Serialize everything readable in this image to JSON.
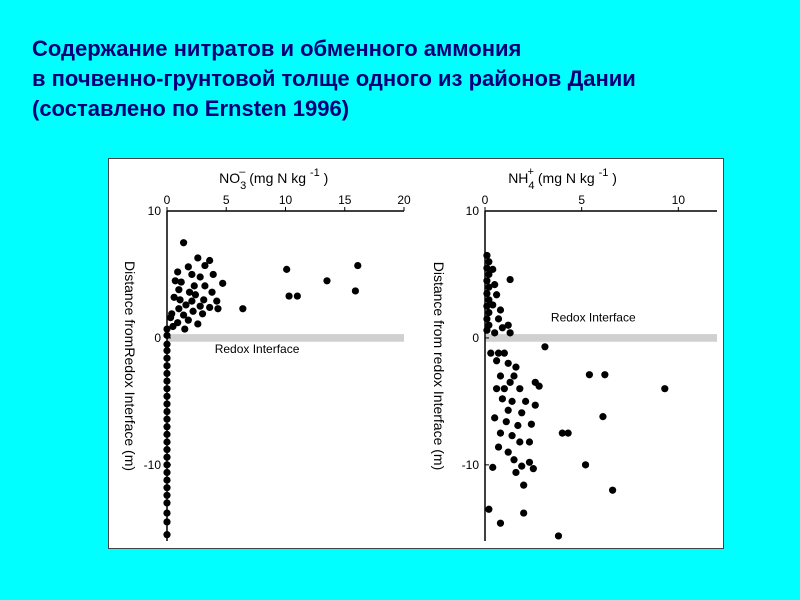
{
  "slide": {
    "title_lines": [
      "Содержание нитратов и обменного аммония",
      "в почвенно-грунтовой толще одного из районов Дании",
      "(составлено по Ernsten 1996)"
    ]
  },
  "colors": {
    "background": "#00ffff",
    "title": "#00007a",
    "marker": "#000000",
    "band": "#d0d0d0"
  },
  "chart_data": [
    {
      "type": "scatter",
      "title": "",
      "xlabel_main": "NO",
      "xlabel_sub": "3",
      "xlabel_sup": "–",
      "xlabel_units": "(mg N kg",
      "xlabel_units_sup": "-1",
      "xlabel_units_close": ")",
      "ylabel": "Distance fromRedox Interface (m)",
      "xlim": [
        0,
        20
      ],
      "ylim": [
        -16,
        10
      ],
      "xticks": [
        0,
        5,
        10,
        15,
        20
      ],
      "yticks": [
        10,
        0,
        -10
      ],
      "band_y": [
        -0.3,
        0.3
      ],
      "annotation": "Redox Interface",
      "annotation_pos": [
        7.6,
        -1.2
      ],
      "points": [
        [
          1.4,
          7.5
        ],
        [
          2.6,
          6.3
        ],
        [
          3.6,
          6.1
        ],
        [
          3.2,
          5.7
        ],
        [
          1.8,
          5.6
        ],
        [
          0.9,
          5.2
        ],
        [
          2.1,
          5.0
        ],
        [
          3.9,
          5.0
        ],
        [
          2.8,
          4.8
        ],
        [
          0.7,
          4.5
        ],
        [
          1.2,
          4.4
        ],
        [
          2.3,
          4.1
        ],
        [
          3.2,
          4.1
        ],
        [
          4.7,
          4.3
        ],
        [
          1.0,
          3.8
        ],
        [
          1.9,
          3.6
        ],
        [
          3.8,
          3.6
        ],
        [
          2.4,
          3.4
        ],
        [
          0.6,
          3.2
        ],
        [
          1.1,
          3.0
        ],
        [
          2.1,
          2.9
        ],
        [
          3.1,
          3.0
        ],
        [
          4.2,
          2.9
        ],
        [
          1.6,
          2.6
        ],
        [
          2.8,
          2.5
        ],
        [
          3.6,
          2.4
        ],
        [
          1.0,
          2.3
        ],
        [
          2.2,
          2.1
        ],
        [
          1.4,
          1.8
        ],
        [
          3.0,
          1.9
        ],
        [
          4.3,
          2.3
        ],
        [
          0.4,
          1.9
        ],
        [
          1.8,
          1.4
        ],
        [
          2.6,
          1.1
        ],
        [
          0.9,
          1.2
        ],
        [
          0.3,
          1.6
        ],
        [
          0.5,
          0.9
        ],
        [
          1.5,
          0.7
        ],
        [
          6.4,
          2.3
        ],
        [
          10.1,
          5.4
        ],
        [
          10.3,
          3.3
        ],
        [
          11.0,
          3.3
        ],
        [
          13.5,
          4.5
        ],
        [
          15.9,
          3.7
        ],
        [
          16.1,
          5.7
        ],
        [
          0.0,
          0.7
        ],
        [
          0.0,
          0.2
        ],
        [
          0.0,
          -0.5
        ],
        [
          0.0,
          -1.0
        ],
        [
          0.0,
          -1.6
        ],
        [
          0.0,
          -2.2
        ],
        [
          0.0,
          -2.8
        ],
        [
          0.0,
          -3.4
        ],
        [
          0.0,
          -4.0
        ],
        [
          0.0,
          -4.6
        ],
        [
          0.0,
          -5.2
        ],
        [
          0.0,
          -5.8
        ],
        [
          0.0,
          -6.4
        ],
        [
          0.0,
          -7.0
        ],
        [
          0.0,
          -7.6
        ],
        [
          0.0,
          -8.2
        ],
        [
          0.0,
          -8.8
        ],
        [
          0.0,
          -9.4
        ],
        [
          0.0,
          -10.0
        ],
        [
          0.0,
          -10.6
        ],
        [
          0.0,
          -11.2
        ],
        [
          0.0,
          -11.8
        ],
        [
          0.0,
          -12.4
        ],
        [
          0.0,
          -13.0
        ],
        [
          0.0,
          -13.8
        ],
        [
          0.0,
          -14.5
        ],
        [
          0.0,
          -15.5
        ]
      ]
    },
    {
      "type": "scatter",
      "title": "",
      "xlabel_main": "NH",
      "xlabel_sub": "4",
      "xlabel_sup": "+",
      "xlabel_units": "(mg N kg",
      "xlabel_units_sup": "-1",
      "xlabel_units_close": ")",
      "ylabel": "Distance from redox Interface (m)",
      "xlim": [
        0,
        12
      ],
      "ylim": [
        -16,
        10
      ],
      "xticks": [
        0,
        5,
        10
      ],
      "yticks": [
        10,
        0,
        -10
      ],
      "band_y": [
        -0.3,
        0.3
      ],
      "annotation": "Redox Interface",
      "annotation_pos": [
        5.6,
        1.3
      ],
      "points": [
        [
          0.1,
          6.5
        ],
        [
          0.2,
          6.0
        ],
        [
          0.1,
          5.5
        ],
        [
          0.2,
          5.0
        ],
        [
          0.1,
          4.5
        ],
        [
          0.2,
          4.0
        ],
        [
          0.1,
          3.5
        ],
        [
          0.2,
          3.0
        ],
        [
          0.1,
          2.5
        ],
        [
          0.2,
          2.0
        ],
        [
          0.1,
          1.5
        ],
        [
          0.2,
          1.0
        ],
        [
          0.1,
          0.6
        ],
        [
          0.4,
          5.4
        ],
        [
          0.5,
          4.2
        ],
        [
          0.6,
          3.4
        ],
        [
          0.4,
          2.6
        ],
        [
          0.8,
          2.2
        ],
        [
          0.7,
          1.5
        ],
        [
          0.9,
          0.8
        ],
        [
          1.2,
          1.0
        ],
        [
          0.5,
          0.4
        ],
        [
          1.3,
          4.6
        ],
        [
          1.3,
          0.4
        ],
        [
          0.3,
          -1.2
        ],
        [
          0.7,
          -1.2
        ],
        [
          1.0,
          -1.2
        ],
        [
          0.6,
          -1.8
        ],
        [
          1.2,
          -2.0
        ],
        [
          1.6,
          -2.3
        ],
        [
          3.1,
          -0.7
        ],
        [
          0.8,
          -3.0
        ],
        [
          1.5,
          -3.0
        ],
        [
          1.3,
          -3.5
        ],
        [
          2.6,
          -3.5
        ],
        [
          2.8,
          -3.8
        ],
        [
          0.6,
          -4.0
        ],
        [
          1.0,
          -4.0
        ],
        [
          1.8,
          -4.0
        ],
        [
          0.9,
          -4.8
        ],
        [
          1.4,
          -5.0
        ],
        [
          2.1,
          -5.0
        ],
        [
          2.6,
          -5.3
        ],
        [
          1.2,
          -5.7
        ],
        [
          1.9,
          -5.9
        ],
        [
          0.5,
          -6.3
        ],
        [
          1.1,
          -6.6
        ],
        [
          1.7,
          -6.9
        ],
        [
          2.4,
          -6.8
        ],
        [
          0.8,
          -7.5
        ],
        [
          1.4,
          -7.7
        ],
        [
          1.8,
          -8.2
        ],
        [
          2.3,
          -8.2
        ],
        [
          0.7,
          -8.6
        ],
        [
          1.2,
          -9.0
        ],
        [
          1.5,
          -9.6
        ],
        [
          2.3,
          -9.8
        ],
        [
          0.4,
          -10.2
        ],
        [
          1.9,
          -10.1
        ],
        [
          1.6,
          -10.6
        ],
        [
          2.5,
          -10.3
        ],
        [
          2.0,
          -11.6
        ],
        [
          4.0,
          -7.5
        ],
        [
          4.3,
          -7.5
        ],
        [
          5.4,
          -2.9
        ],
        [
          6.2,
          -2.9
        ],
        [
          6.1,
          -6.2
        ],
        [
          9.3,
          -4.0
        ],
        [
          5.2,
          -10.0
        ],
        [
          6.6,
          -12.0
        ],
        [
          0.2,
          -13.5
        ],
        [
          0.8,
          -14.6
        ],
        [
          2.0,
          -13.8
        ],
        [
          3.8,
          -15.6
        ]
      ]
    }
  ]
}
